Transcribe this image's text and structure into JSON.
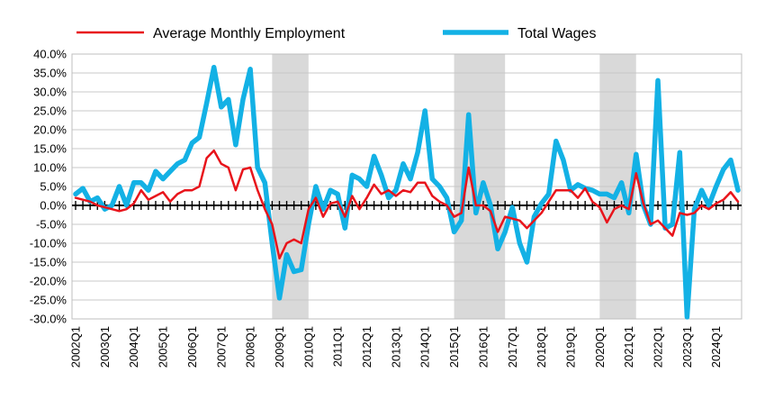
{
  "chart_data": {
    "type": "line",
    "title": "",
    "xlabel": "",
    "ylabel": "",
    "ylim": [
      -30,
      40
    ],
    "y_ticks": [
      "40.0%",
      "35.0%",
      "30.0%",
      "25.0%",
      "20.0%",
      "15.0%",
      "10.0%",
      "5.0%",
      "0.0%",
      "-5.0%",
      "-10.0%",
      "-15.0%",
      "-20.0%",
      "-25.0%",
      "-30.0%"
    ],
    "x_tick_labels": [
      "2002Q1",
      "2003Q1",
      "2004Q1",
      "2005Q1",
      "2006Q1",
      "2007Q1",
      "2008Q1",
      "2009Q1",
      "2010Q1",
      "2011Q1",
      "2012Q1",
      "2013Q1",
      "2014Q1",
      "2015Q1",
      "2016Q1",
      "2017Q1",
      "2018Q1",
      "2019Q1",
      "2020Q1",
      "2021Q1",
      "2022Q1",
      "2023Q1",
      "2024Q1"
    ],
    "legend": {
      "placement": "top"
    },
    "grid": "horizontal",
    "recession_shading": [
      {
        "start_index": 27,
        "end_index": 32
      },
      {
        "start_index": 52,
        "end_index": 59
      },
      {
        "start_index": 72,
        "end_index": 77
      }
    ],
    "series": [
      {
        "name": "Average Monthly Employment",
        "color": "#e8141b",
        "values": [
          2,
          1.5,
          1,
          0,
          -0.5,
          -1,
          -1.5,
          -1,
          0.5,
          4,
          1.5,
          2.5,
          3.5,
          1,
          3,
          4,
          4,
          5,
          12.5,
          14.5,
          11,
          10,
          4,
          9.5,
          10,
          4,
          -1,
          -5,
          -14,
          -10,
          -9,
          -10,
          -1,
          2,
          -3,
          0.5,
          1,
          -3,
          2.5,
          -1,
          2,
          5.5,
          3,
          4,
          2.5,
          4,
          3.5,
          6,
          6,
          2.5,
          1,
          0,
          -3,
          -2,
          10,
          0,
          0,
          -1.5,
          -7,
          -3,
          -3.5,
          -4,
          -6,
          -4,
          -2,
          1,
          4,
          4,
          4,
          2,
          4.5,
          1,
          -0.5,
          -4.5,
          -1,
          0,
          -1,
          8.5,
          0.5,
          -5,
          -4,
          -6,
          -8,
          -2,
          -2.5,
          -2,
          0,
          -1,
          0.5,
          1.5,
          3.5,
          1
        ]
      },
      {
        "name": "Total Wages",
        "color": "#13b1e5",
        "values": [
          3,
          4.5,
          1,
          2,
          -1,
          0,
          5,
          0,
          6,
          6,
          4,
          9,
          7,
          9,
          11,
          12,
          16.5,
          18,
          27,
          36.5,
          26,
          28,
          16,
          28,
          36,
          10,
          6,
          -10,
          -24.5,
          -13,
          -17.5,
          -17,
          -5,
          5,
          -1,
          4,
          3,
          -6,
          8,
          7,
          5,
          13,
          8,
          2,
          4,
          11,
          7,
          14,
          25,
          7,
          5,
          2,
          -7,
          -4,
          24,
          -2,
          6,
          0,
          -11.5,
          -7,
          -0.5,
          -10,
          -15,
          -3,
          0.5,
          3,
          17,
          12,
          4,
          5.5,
          4.5,
          4,
          3,
          3,
          2,
          6,
          -2,
          13.5,
          0,
          -5,
          33,
          -6,
          -5,
          14,
          -29.5,
          -1,
          4,
          0,
          5,
          9.5,
          12,
          4
        ]
      }
    ]
  }
}
